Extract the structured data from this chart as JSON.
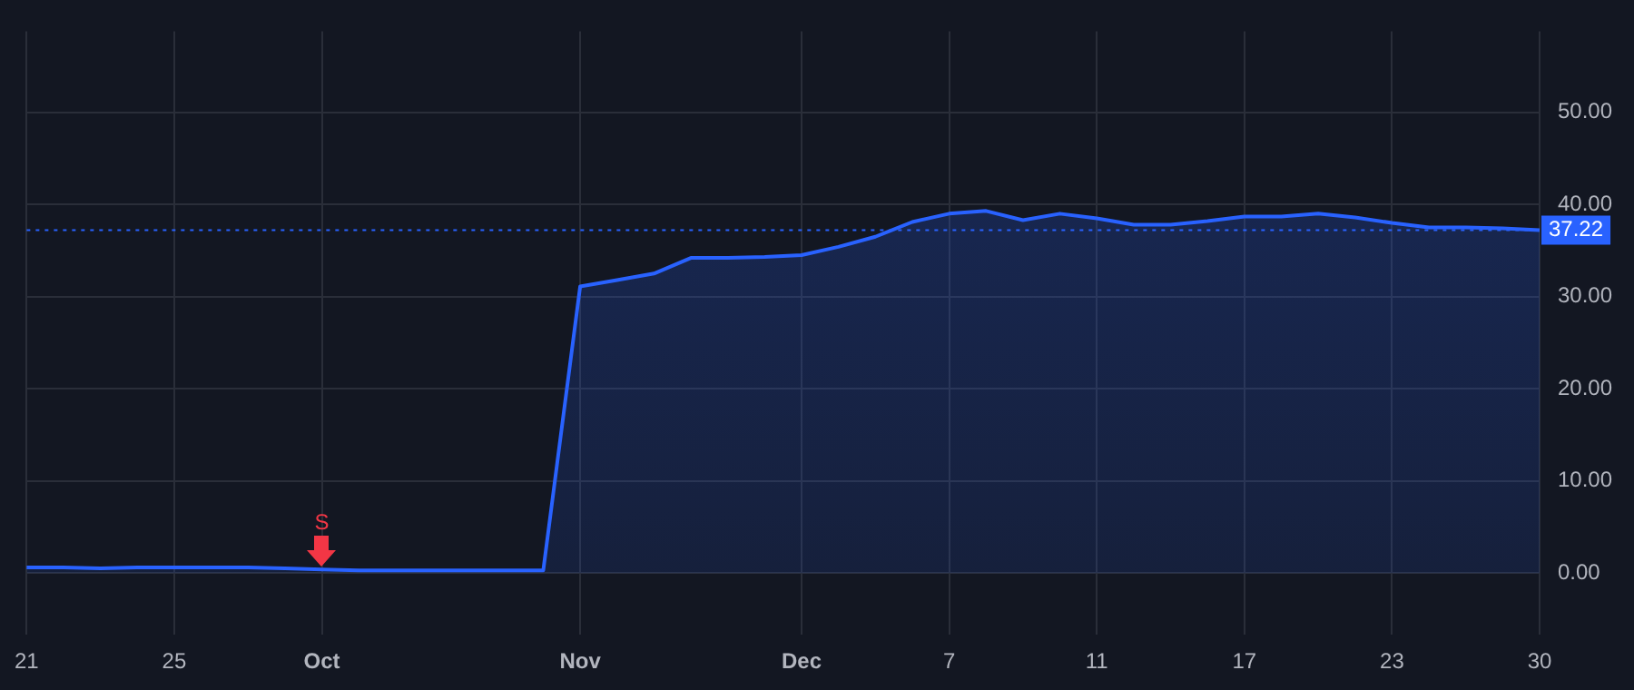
{
  "chart_data": {
    "type": "area",
    "categories": [
      "21",
      null,
      null,
      null,
      "25",
      null,
      null,
      null,
      "Oct",
      null,
      null,
      null,
      null,
      null,
      null,
      "Nov",
      null,
      null,
      null,
      null,
      null,
      "Dec",
      null,
      null,
      null,
      "7",
      null,
      null,
      null,
      "11",
      null,
      null,
      null,
      "17",
      null,
      null,
      null,
      "23",
      null,
      null,
      null,
      "30"
    ],
    "series": [
      {
        "color": "#2962ff",
        "values": [
          0.6,
          0.6,
          0.5,
          0.6,
          0.6,
          0.6,
          0.6,
          0.5,
          0.4,
          0.3,
          0.3,
          0.3,
          0.3,
          0.3,
          0.3,
          31.1,
          31.8,
          32.5,
          34.2,
          34.2,
          34.3,
          34.5,
          35.4,
          36.5,
          38.1,
          39.0,
          39.3,
          38.3,
          39.0,
          38.5,
          37.8,
          37.8,
          38.2,
          38.7,
          38.7,
          39.0,
          38.6,
          38.0,
          37.5,
          37.5,
          37.4,
          37.22
        ]
      }
    ],
    "ylim": [
      -6.7,
      58.8
    ],
    "yticks": [
      {
        "value": 0,
        "label": "0.00"
      },
      {
        "value": 10,
        "label": "10.00"
      },
      {
        "value": 20,
        "label": "20.00"
      },
      {
        "value": 30,
        "label": "30.00"
      },
      {
        "value": 40,
        "label": "40.00"
      },
      {
        "value": 50,
        "label": "50.00"
      }
    ],
    "grid": true,
    "legend": false,
    "ref_lines": [
      {
        "axis": "y",
        "value": 37.22,
        "label": "37.22",
        "color": "#2962ff",
        "line_style": "dotted"
      }
    ],
    "annotations": [
      {
        "text": "S",
        "x": "Oct",
        "y": 0.4
      }
    ]
  }
}
